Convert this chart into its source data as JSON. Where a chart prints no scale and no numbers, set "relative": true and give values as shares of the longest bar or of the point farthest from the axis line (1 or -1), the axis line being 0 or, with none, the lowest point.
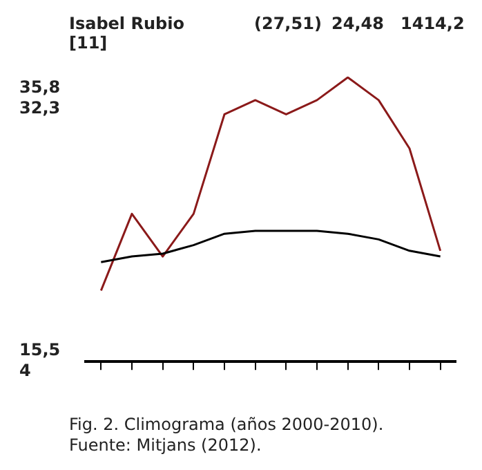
{
  "chart_data": {
    "type": "line",
    "title": "Isabel Rubio [11]",
    "relative": true,
    "categories": [
      null,
      null,
      null,
      null,
      null,
      null,
      null,
      null,
      null,
      null,
      null,
      null
    ],
    "series": [
      {
        "color": "#000000",
        "values": [
          0.35,
          0.37,
          0.38,
          0.41,
          0.45,
          0.46,
          0.46,
          0.46,
          0.45,
          0.43,
          0.39,
          0.37
        ]
      },
      {
        "color": "#8b1a1a",
        "values": [
          0.25,
          0.52,
          0.37,
          0.52,
          0.87,
          0.92,
          0.87,
          0.92,
          1,
          0.92,
          0.75,
          0.39
        ]
      }
    ],
    "annotations": [
      "(27,51)",
      "24,48",
      "1414,2",
      "35,8",
      "32,3",
      "15,5",
      "4",
      "Fig. 2. Climograma (años 2000-2010).",
      "Fuente: Mitjans (2012)."
    ],
    "legend": false,
    "grid": false,
    "marker": "none",
    "line_style": "solid"
  }
}
